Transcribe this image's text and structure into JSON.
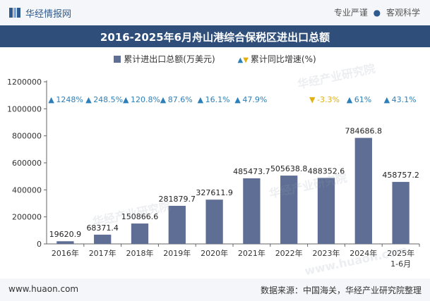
{
  "header": {
    "brand": "华经情报网",
    "tag1": "专业严谨",
    "tag2": "客观科学"
  },
  "title": "2016-2025年6月舟山港综合保税区进出口总额",
  "legend": {
    "bar": "累计进出口总额(万美元)",
    "pct": "累计同比增速(%)"
  },
  "footer": {
    "site": "www.huaon.com",
    "source": "数据来源：中国海关，华经产业研究院整理"
  },
  "watermarks": [
    "华经产业研究院",
    "华经产业研究院",
    "华经产业研究院",
    "www.huaon.com"
  ],
  "colors": {
    "bar": "#5e6e94",
    "up": "#2c7fb8",
    "down": "#e0b010",
    "title_bg": "#2f4f7a"
  },
  "chart_data": {
    "type": "bar",
    "categories": [
      "2016年",
      "2017年",
      "2018年",
      "2019年",
      "2020年",
      "2021年",
      "2022年",
      "2023年",
      "2024年",
      "2025年 1-6月"
    ],
    "series": [
      {
        "name": "累计进出口总额(万美元)",
        "values": [
          19620.9,
          68371.4,
          150866.6,
          281879.7,
          327611.9,
          485473.7,
          505638.8,
          488352.6,
          784686.8,
          458757.2
        ],
        "labels": [
          "19620.9",
          "68371.4",
          "150866.6",
          "281879.7",
          "327611.9",
          "485473.7",
          "505638.8",
          "488352.6",
          "784686.8",
          "458757.2"
        ]
      },
      {
        "name": "累计同比增速(%)",
        "values": [
          1248,
          248.5,
          120.8,
          87.6,
          16.1,
          47.9,
          null,
          -3.3,
          61,
          43.1
        ],
        "labels": [
          "1248%",
          "248.5%",
          "120.8%",
          "87.6%",
          "16.1%",
          "47.9%",
          "",
          "-3.3%",
          "61%",
          "43.1%"
        ]
      }
    ],
    "ylim": [
      0,
      1200000
    ],
    "yticks": [
      "0",
      "200000",
      "400000",
      "600000",
      "800000",
      "1000000",
      "1200000"
    ],
    "grid": false,
    "legend_position": "top"
  }
}
